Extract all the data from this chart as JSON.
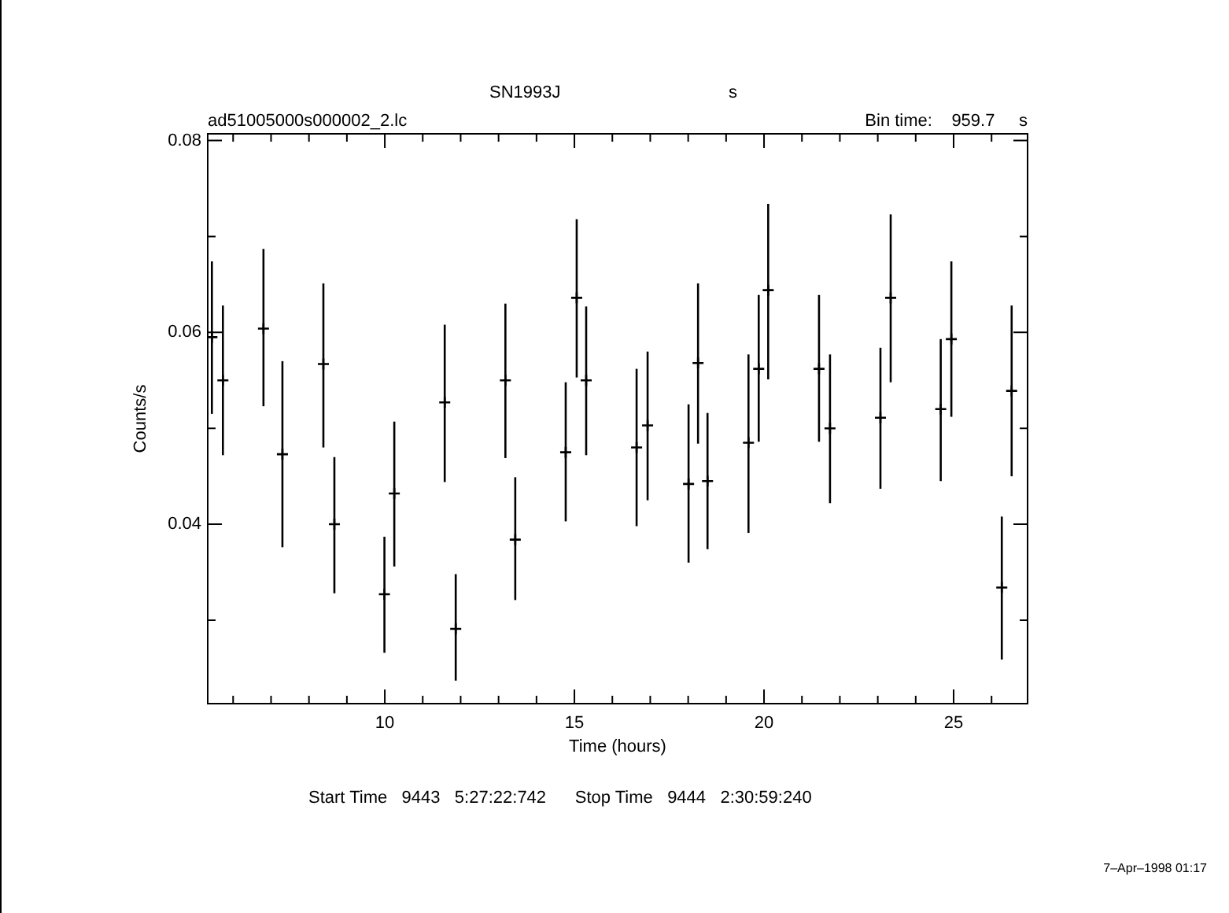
{
  "chart_data": {
    "type": "scatter",
    "title": "SN1993J",
    "xlabel": "Time (hours)",
    "ylabel": "Counts/s",
    "annotations": [
      "s",
      "ad51005000s000002_2.lc",
      "Bin time:    959.7     s",
      "Start Time   9443   5:27:22:742      Stop Time   9444   2:30:59:240",
      "7–Apr–1998 01:17"
    ],
    "x": [
      5.44,
      5.73,
      6.8,
      7.3,
      8.38,
      8.67,
      9.99,
      10.25,
      11.58,
      11.87,
      13.18,
      13.44,
      14.77,
      15.06,
      15.31,
      16.64,
      16.93,
      18.01,
      18.26,
      18.51,
      19.59,
      19.86,
      20.11,
      21.45,
      21.74,
      23.07,
      23.34,
      24.66,
      24.94,
      26.27,
      26.53
    ],
    "values": [
      0.0595,
      0.055,
      0.0604,
      0.0473,
      0.0567,
      0.04,
      0.0327,
      0.0432,
      0.0527,
      0.0291,
      0.055,
      0.0384,
      0.0475,
      0.0636,
      0.055,
      0.048,
      0.0503,
      0.0442,
      0.0568,
      0.0445,
      0.0485,
      0.0562,
      0.0644,
      0.0562,
      0.05,
      0.0511,
      0.0636,
      0.052,
      0.0593,
      0.0334,
      0.0539
    ],
    "errors": [
      [
        0.0515,
        0.0674
      ],
      [
        0.0472,
        0.0628
      ],
      [
        0.0523,
        0.0687
      ],
      [
        0.0376,
        0.057
      ],
      [
        0.048,
        0.0651
      ],
      [
        0.0328,
        0.047
      ],
      [
        0.0266,
        0.0387
      ],
      [
        0.0356,
        0.0507
      ],
      [
        0.0444,
        0.0608
      ],
      [
        0.0237,
        0.0348
      ],
      [
        0.0469,
        0.063
      ],
      [
        0.0321,
        0.0449
      ],
      [
        0.0403,
        0.0548
      ],
      [
        0.0553,
        0.0718
      ],
      [
        0.0472,
        0.0627
      ],
      [
        0.0398,
        0.0562
      ],
      [
        0.0425,
        0.058
      ],
      [
        0.036,
        0.0525
      ],
      [
        0.0484,
        0.0651
      ],
      [
        0.0374,
        0.0516
      ],
      [
        0.0391,
        0.0577
      ],
      [
        0.0486,
        0.0639
      ],
      [
        0.0551,
        0.0734
      ],
      [
        0.0486,
        0.0639
      ],
      [
        0.0422,
        0.0577
      ],
      [
        0.0437,
        0.0584
      ],
      [
        0.0548,
        0.0723
      ],
      [
        0.0445,
        0.0593
      ],
      [
        0.0512,
        0.0674
      ],
      [
        0.0259,
        0.0408
      ],
      [
        0.045,
        0.0628
      ]
    ],
    "color": "#000000",
    "marker": "cross",
    "grid": false,
    "legend": false,
    "xlim": [
      5.33,
      26.95
    ],
    "ylim": [
      0.0213,
      0.0807
    ],
    "xticks": [
      {
        "value": 6,
        "label": null
      },
      {
        "value": 7,
        "label": null
      },
      {
        "value": 8,
        "label": null
      },
      {
        "value": 9,
        "label": null
      },
      10,
      {
        "value": 11,
        "label": null
      },
      {
        "value": 12,
        "label": null
      },
      {
        "value": 13,
        "label": null
      },
      {
        "value": 14,
        "label": null
      },
      15,
      {
        "value": 16,
        "label": null
      },
      {
        "value": 17,
        "label": null
      },
      {
        "value": 18,
        "label": null
      },
      {
        "value": 19,
        "label": null
      },
      20,
      {
        "value": 21,
        "label": null
      },
      {
        "value": 22,
        "label": null
      },
      {
        "value": 23,
        "label": null
      },
      {
        "value": 24,
        "label": null
      },
      25,
      {
        "value": 26,
        "label": null
      }
    ],
    "yticks": [
      {
        "value": 0.03,
        "label": null
      },
      0.04,
      {
        "value": 0.05,
        "label": null
      },
      0.06,
      {
        "value": 0.07,
        "label": null
      },
      0.08
    ]
  }
}
